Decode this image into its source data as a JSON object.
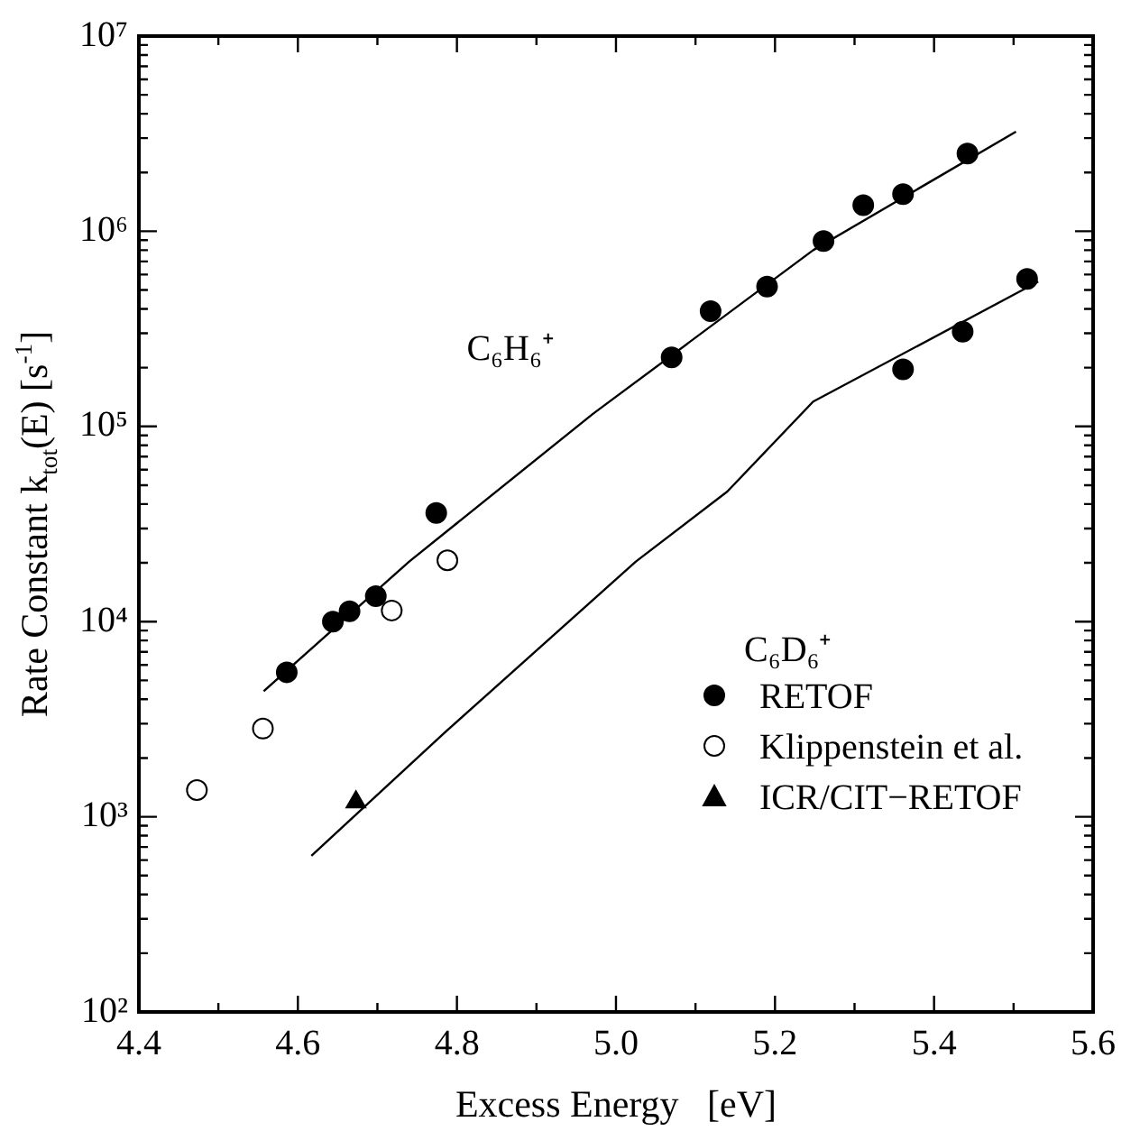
{
  "chart_data": {
    "type": "scatter",
    "xlabel": "Excess Energy   [eV]",
    "ylabel": "Rate Constant k$_{tot}$(E) [s$^{-1}$]",
    "series": [
      {
        "name": "RETOF",
        "marker": "circle",
        "color": "#000000",
        "x": [
          4.586,
          4.644,
          4.665,
          4.698,
          4.774,
          5.07,
          5.119,
          5.19,
          5.261,
          5.311,
          5.361,
          5.442,
          5.361,
          5.436,
          5.517
        ],
        "values": [
          5500,
          10000,
          11300,
          13500,
          36000,
          226000,
          390000,
          520000,
          890000,
          1360000,
          1550000,
          2500000,
          196000,
          306000,
          570000
        ]
      },
      {
        "name": "Klippenstein et al.",
        "marker": "circle",
        "color": "#ffffff",
        "x": [
          4.473,
          4.556,
          4.718,
          4.788
        ],
        "values": [
          1370,
          2830,
          11400,
          20600
        ]
      },
      {
        "name": "ICR/CIT−RETOF",
        "marker": "triangle",
        "color": "#000000",
        "x": [
          4.673
        ],
        "values": [
          1190
        ]
      },
      {
        "type": "line",
        "marker": "none",
        "color": "#000000",
        "x": [
          4.557,
          4.74,
          4.971,
          5.248,
          5.503
        ],
        "values": [
          4400,
          20300,
          116000,
          800000,
          3240000
        ]
      },
      {
        "type": "line",
        "marker": "none",
        "color": "#000000",
        "x": [
          4.617,
          4.786,
          5.025,
          5.14,
          5.248,
          5.531
        ],
        "values": [
          631,
          2730,
          20300,
          46400,
          134000,
          552000
        ]
      }
    ],
    "annotations": [
      "C₆H₆⁺",
      "C₆D₆⁺"
    ],
    "log": "y",
    "legend": "right",
    "grid": false,
    "xlim": [
      4.4,
      5.6
    ],
    "xticks": [
      4.4,
      {
        "value": 4.5,
        "label": null
      },
      4.6,
      {
        "value": 4.7,
        "label": null
      },
      4.8,
      {
        "value": 4.9,
        "label": null
      },
      {
        "value": 5,
        "label": "5.0"
      },
      {
        "value": 5.1,
        "label": null
      },
      5.2,
      {
        "value": 5.3,
        "label": null
      },
      5.4,
      {
        "value": 5.5,
        "label": null
      },
      5.6
    ],
    "ylim": [
      100,
      10000000
    ],
    "yticks": [
      {
        "value": 100,
        "label": "10²"
      },
      {
        "value": 1000,
        "label": "10³"
      },
      {
        "value": 10000,
        "label": "10⁴"
      },
      {
        "value": 100000,
        "label": "10⁵"
      },
      {
        "value": 1000000,
        "label": "10⁶"
      },
      {
        "value": 10000000,
        "label": "10⁷"
      }
    ]
  }
}
